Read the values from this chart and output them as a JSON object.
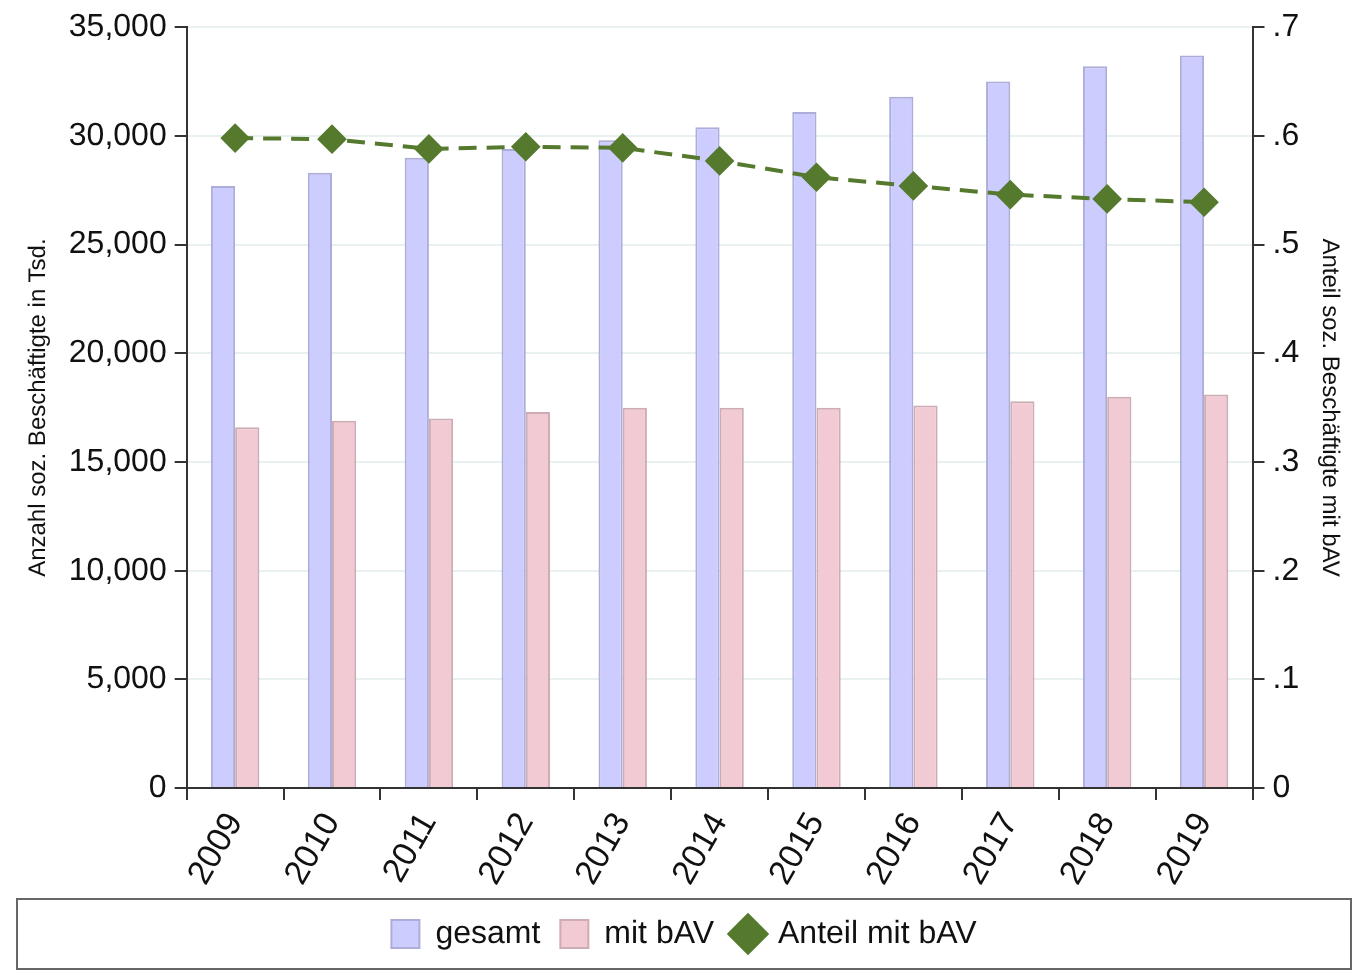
{
  "chart_data": {
    "type": "bar",
    "ylabel": "Anzahl soz. Beschäftigte in Tsd.",
    "y2label": "Anteil soz. Beschäftigte mit bAV",
    "categories": [
      "2009",
      "2010",
      "2011",
      "2012",
      "2013",
      "2014",
      "2015",
      "2016",
      "2017",
      "2018",
      "2019"
    ],
    "series": [
      {
        "name": "gesamt",
        "color": "#ccccff",
        "values": [
          27700,
          28300,
          29000,
          29400,
          29800,
          30400,
          31100,
          31800,
          32500,
          33200,
          33700
        ]
      },
      {
        "name": "mit bAV",
        "color": "#f2cad3",
        "values": [
          16600,
          16900,
          17000,
          17300,
          17500,
          17500,
          17500,
          17600,
          17800,
          18000,
          18100
        ]
      },
      {
        "name": "Anteil mit bAV",
        "type": "line",
        "axis": "y2",
        "color": "#557a2e",
        "values": [
          0.598,
          0.597,
          0.588,
          0.59,
          0.589,
          0.577,
          0.562,
          0.554,
          0.546,
          0.542,
          0.539
        ]
      }
    ],
    "ylim": [
      0,
      35000
    ],
    "yticks": [
      0,
      {
        "value": 5000,
        "label": "5,000"
      },
      {
        "value": 10000,
        "label": "10,000"
      },
      {
        "value": 15000,
        "label": "15,000"
      },
      {
        "value": 20000,
        "label": "20,000"
      },
      {
        "value": 25000,
        "label": "25,000"
      },
      {
        "value": 30000,
        "label": "30,000"
      },
      {
        "value": 35000,
        "label": "35,000"
      }
    ],
    "y2lim": [
      0,
      0.7
    ],
    "y2ticks": [
      0,
      {
        "value": 0.1,
        "label": ".1"
      },
      {
        "value": 0.2,
        "label": ".2"
      },
      {
        "value": 0.3,
        "label": ".3"
      },
      {
        "value": 0.4,
        "label": ".4"
      },
      {
        "value": 0.5,
        "label": ".5"
      },
      {
        "value": 0.6,
        "label": ".6"
      },
      {
        "value": 0.7,
        "label": ".7"
      }
    ],
    "grid": "y",
    "legend": "bottom",
    "marker": "diamond",
    "line_style": "dashed"
  }
}
